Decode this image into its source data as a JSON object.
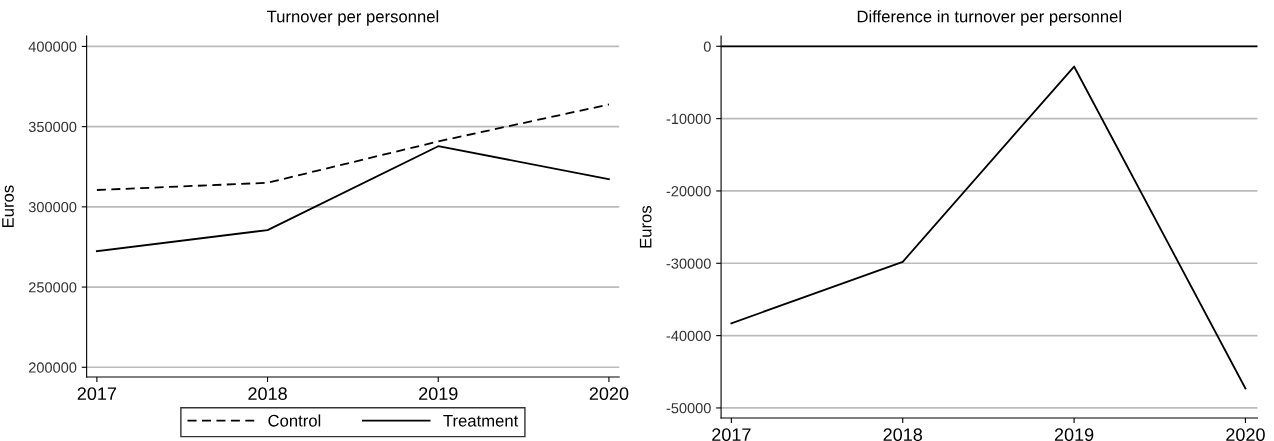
{
  "chart_data": [
    {
      "type": "line",
      "title": "Turnover per personnel",
      "ylabel": "Euros",
      "x": [
        2017,
        2018,
        2019,
        2020
      ],
      "xlim": [
        2016.94,
        2020.06
      ],
      "xticks": [
        2017,
        2018,
        2019,
        2020
      ],
      "ylim": [
        193900,
        406400
      ],
      "yticks": [
        200000,
        250000,
        300000,
        350000,
        400000
      ],
      "grid": "y",
      "legend": "bottom",
      "marker": "none",
      "series": [
        {
          "name": "Control",
          "color": "#000000",
          "line_style": "dashed",
          "values": [
            310500,
            315000,
            340800,
            363800
          ]
        },
        {
          "name": "Treatment",
          "color": "#000000",
          "line_style": "solid",
          "values": [
            272400,
            285500,
            337800,
            317300
          ]
        }
      ]
    },
    {
      "type": "line",
      "title": "Difference in turnover per personnel",
      "ylabel": "Euros",
      "x": [
        2017,
        2018,
        2019,
        2020
      ],
      "xlim": [
        2016.94,
        2020.07
      ],
      "xticks": [
        2017,
        2018,
        2019,
        2020
      ],
      "ylim": [
        -51400,
        1400
      ],
      "yticks": [
        -50000,
        -40000,
        -30000,
        -20000,
        -10000,
        0
      ],
      "grid": "y",
      "marker": "none",
      "ref_lines": [
        {
          "axis": "y",
          "value": 0,
          "color": "#000000",
          "line_style": "solid"
        }
      ],
      "series": [
        {
          "color": "#000000",
          "line_style": "solid",
          "values": [
            -38300,
            -29800,
            -2800,
            -47300
          ]
        }
      ]
    }
  ]
}
